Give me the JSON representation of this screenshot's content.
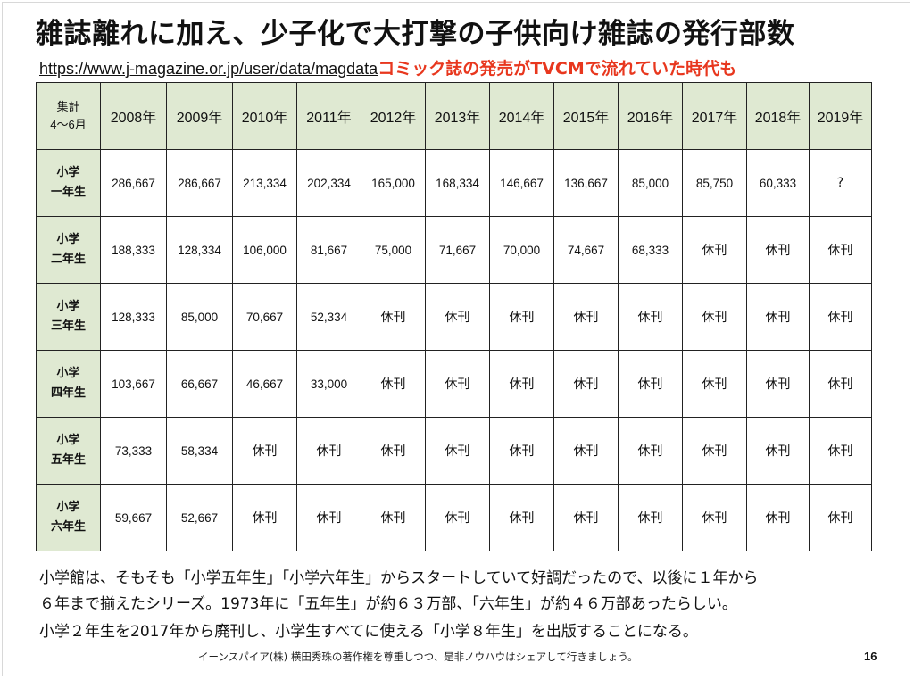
{
  "title": "雑誌離れに加え、少子化で大打撃の子供向け雑誌の発行部数",
  "source_url": "https://www.j-magazine.or.jp/user/data/magdata",
  "red_note": "コミック誌の発売がTVCMで流れていた時代も",
  "table": {
    "corner_line1": "集計",
    "corner_line2": "4〜6月",
    "years": [
      "2008年",
      "2009年",
      "2010年",
      "2011年",
      "2012年",
      "2013年",
      "2014年",
      "2015年",
      "2016年",
      "2017年",
      "2018年",
      "2019年"
    ],
    "rows": [
      {
        "label1": "小学",
        "label2": "一年生",
        "values": [
          "286,667",
          "286,667",
          "213,334",
          "202,334",
          "165,000",
          "168,334",
          "146,667",
          "136,667",
          "85,000",
          "85,750",
          "60,333",
          "?"
        ]
      },
      {
        "label1": "小学",
        "label2": "二年生",
        "values": [
          "188,333",
          "128,334",
          "106,000",
          "81,667",
          "75,000",
          "71,667",
          "70,000",
          "74,667",
          "68,333",
          "休刊",
          "休刊",
          "休刊"
        ]
      },
      {
        "label1": "小学",
        "label2": "三年生",
        "values": [
          "128,333",
          "85,000",
          "70,667",
          "52,334",
          "休刊",
          "休刊",
          "休刊",
          "休刊",
          "休刊",
          "休刊",
          "休刊",
          "休刊"
        ]
      },
      {
        "label1": "小学",
        "label2": "四年生",
        "values": [
          "103,667",
          "66,667",
          "46,667",
          "33,000",
          "休刊",
          "休刊",
          "休刊",
          "休刊",
          "休刊",
          "休刊",
          "休刊",
          "休刊"
        ]
      },
      {
        "label1": "小学",
        "label2": "五年生",
        "values": [
          "73,333",
          "58,334",
          "休刊",
          "休刊",
          "休刊",
          "休刊",
          "休刊",
          "休刊",
          "休刊",
          "休刊",
          "休刊",
          "休刊"
        ]
      },
      {
        "label1": "小学",
        "label2": "六年生",
        "values": [
          "59,667",
          "52,667",
          "休刊",
          "休刊",
          "休刊",
          "休刊",
          "休刊",
          "休刊",
          "休刊",
          "休刊",
          "休刊",
          "休刊"
        ]
      }
    ]
  },
  "notes": [
    "小学館は、そもそも「小学五年生」「小学六年生」からスタートしていて好調だったので、以後に１年から",
    "６年まで揃えたシリーズ。1973年に「五年生」が約６３万部、「六年生」が約４６万部あったらしい。",
    "小学２年生を2017年から廃刊し、小学生すべてに使える「小学８年生」を出版することになる。"
  ],
  "footer": "イーンスパイア(株) 横田秀珠の著作権を尊重しつつ、是非ノウハウはシェアして行きましょう。",
  "page_number": "16"
}
